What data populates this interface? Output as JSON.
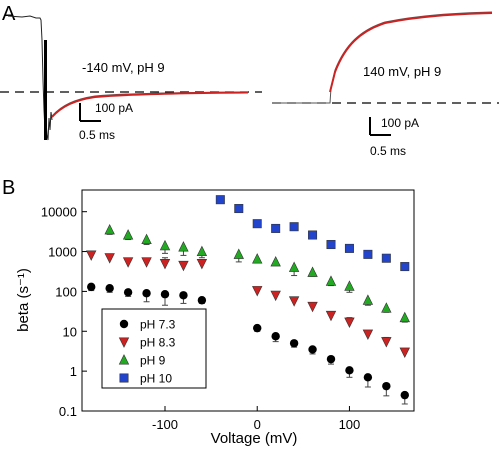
{
  "panel_a": {
    "label": "A",
    "left_trace": {
      "condition": "-140 mV, pH 9",
      "current_scale": "100 pA",
      "time_scale": "0.5 ms"
    },
    "right_trace": {
      "condition": "140 mV, pH 9",
      "current_scale": "100 pA",
      "time_scale": "0.5 ms"
    },
    "colors": {
      "trace": "#222222",
      "fit": "#cc2222",
      "baseline": "#000000"
    }
  },
  "panel_b": {
    "label": "B"
  },
  "chart_data": {
    "type": "scatter",
    "xlabel": "Voltage (mV)",
    "ylabel": "beta (s⁻¹)",
    "xlim": [
      -190,
      170
    ],
    "ylim": [
      0.1,
      35000
    ],
    "yscale": "log",
    "xticks": [
      -100,
      0,
      100
    ],
    "yticks": [
      {
        "value": 0.1,
        "label": "0.1"
      },
      {
        "value": 1,
        "label": "1"
      },
      {
        "value": 10,
        "label": "10"
      },
      {
        "value": 100,
        "label": "100"
      },
      {
        "value": 1000,
        "label": "1000"
      },
      {
        "value": 10000,
        "label": "10000"
      }
    ],
    "grid": false,
    "legend_position": "bottom-left",
    "series": [
      {
        "name": "pH 7.3",
        "marker": "circle",
        "color": "#000000",
        "points": [
          {
            "x": -180,
            "y": 130,
            "err": 25
          },
          {
            "x": -160,
            "y": 120,
            "err": 25
          },
          {
            "x": -140,
            "y": 95,
            "err": 20
          },
          {
            "x": -120,
            "y": 90,
            "err": 35
          },
          {
            "x": -100,
            "y": 85,
            "err": 40
          },
          {
            "x": -80,
            "y": 80,
            "err": 30
          },
          {
            "x": -60,
            "y": 60,
            "err": 10
          },
          {
            "x": 0,
            "y": 12,
            "err": 2
          },
          {
            "x": 20,
            "y": 7.5,
            "err": 2
          },
          {
            "x": 40,
            "y": 5,
            "err": 1
          },
          {
            "x": 60,
            "y": 3.5,
            "err": 0.8
          },
          {
            "x": 80,
            "y": 2,
            "err": 0.5
          },
          {
            "x": 100,
            "y": 1.05,
            "err": 0.35
          },
          {
            "x": 120,
            "y": 0.7,
            "err": 0.3
          },
          {
            "x": 140,
            "y": 0.42,
            "err": 0.18
          },
          {
            "x": 160,
            "y": 0.25,
            "err": 0.1
          }
        ]
      },
      {
        "name": "pH 8.3",
        "marker": "triangle-down",
        "color": "#cc2222",
        "points": [
          {
            "x": -180,
            "y": 820,
            "err": 200
          },
          {
            "x": -160,
            "y": 700,
            "err": 150
          },
          {
            "x": -140,
            "y": 550,
            "err": 100
          },
          {
            "x": -120,
            "y": 550,
            "err": 120
          },
          {
            "x": -100,
            "y": 500,
            "err": 200
          },
          {
            "x": -80,
            "y": 450,
            "err": 100
          },
          {
            "x": -60,
            "y": 500,
            "err": 100
          },
          {
            "x": 0,
            "y": 105,
            "err": 20
          },
          {
            "x": 20,
            "y": 80,
            "err": 15
          },
          {
            "x": 40,
            "y": 58,
            "err": 10
          },
          {
            "x": 60,
            "y": 42,
            "err": 8
          },
          {
            "x": 80,
            "y": 25,
            "err": 5
          },
          {
            "x": 100,
            "y": 17,
            "err": 5
          },
          {
            "x": 120,
            "y": 8.5,
            "err": 1.5
          },
          {
            "x": 140,
            "y": 5.5,
            "err": 1.5
          },
          {
            "x": 160,
            "y": 3,
            "err": 0.7
          }
        ]
      },
      {
        "name": "pH 9",
        "marker": "triangle-up",
        "color": "#22aa22",
        "points": [
          {
            "x": -160,
            "y": 3500,
            "err": 800
          },
          {
            "x": -140,
            "y": 2600,
            "err": 600
          },
          {
            "x": -120,
            "y": 2000,
            "err": 500
          },
          {
            "x": -100,
            "y": 1400,
            "err": 500
          },
          {
            "x": -80,
            "y": 1300,
            "err": 500
          },
          {
            "x": -60,
            "y": 1000,
            "err": 300
          },
          {
            "x": -20,
            "y": 850,
            "err": 300
          },
          {
            "x": 0,
            "y": 650,
            "err": 100
          },
          {
            "x": 20,
            "y": 550,
            "err": 100
          },
          {
            "x": 40,
            "y": 400,
            "err": 150
          },
          {
            "x": 60,
            "y": 300,
            "err": 60
          },
          {
            "x": 80,
            "y": 180,
            "err": 40
          },
          {
            "x": 100,
            "y": 135,
            "err": 40
          },
          {
            "x": 120,
            "y": 60,
            "err": 15
          },
          {
            "x": 140,
            "y": 38,
            "err": 8
          },
          {
            "x": 160,
            "y": 22,
            "err": 5
          }
        ]
      },
      {
        "name": "pH 10",
        "marker": "square",
        "color": "#2244cc",
        "points": [
          {
            "x": -40,
            "y": 20000,
            "err": 2000
          },
          {
            "x": -20,
            "y": 12000,
            "err": 1500
          },
          {
            "x": 0,
            "y": 5000,
            "err": 800
          },
          {
            "x": 20,
            "y": 3800,
            "err": 600
          },
          {
            "x": 40,
            "y": 4200,
            "err": 500
          },
          {
            "x": 60,
            "y": 2600,
            "err": 400
          },
          {
            "x": 80,
            "y": 1500,
            "err": 300
          },
          {
            "x": 100,
            "y": 1200,
            "err": 200
          },
          {
            "x": 120,
            "y": 850,
            "err": 150
          },
          {
            "x": 140,
            "y": 680,
            "err": 120
          },
          {
            "x": 160,
            "y": 420,
            "err": 80
          }
        ]
      }
    ]
  }
}
